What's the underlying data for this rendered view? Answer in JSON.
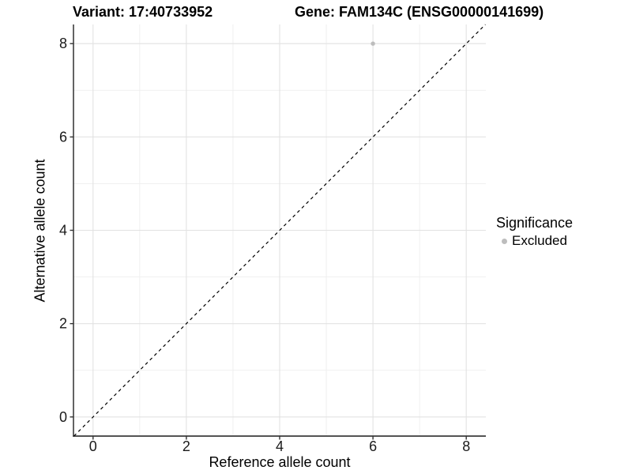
{
  "window": {
    "title_left": "Variant: 17:40733952",
    "title_right": "Gene: FAM134C (ENSG00000141699)"
  },
  "chart_data": {
    "type": "scatter",
    "title_left": "Variant: 17:40733952",
    "title_right": "Gene: FAM134C (ENSG00000141699)",
    "xlabel": "Reference allele count",
    "ylabel": "Alternative allele count",
    "xlim": [
      -0.42,
      8.42
    ],
    "ylim": [
      -0.41,
      8.41
    ],
    "x_ticks": [
      0,
      2,
      4,
      6,
      8
    ],
    "y_ticks": [
      0,
      2,
      4,
      6,
      8
    ],
    "x_minor_ticks": [
      1,
      3,
      5,
      7
    ],
    "y_minor_ticks": [
      1,
      3,
      5,
      7
    ],
    "grid": "on",
    "identity_line": {
      "equation": "y = x",
      "style": "dashed",
      "color": "#000000"
    },
    "series": [
      {
        "name": "Excluded",
        "color": "#bdbdbd",
        "points": [
          {
            "x": 6,
            "y": 8
          }
        ]
      }
    ],
    "legend": {
      "title": "Significance",
      "position": "right",
      "entries": [
        {
          "label": "Excluded",
          "color": "#bdbdbd"
        }
      ]
    },
    "colors": {
      "background": "#ffffff",
      "grid_major": "#e2e2e2",
      "grid_minor": "#eeeeee",
      "axis_line": "#3c3c3c",
      "tick_mark": "#333333",
      "tick_label": "#1a1a1a",
      "text": "#000000"
    }
  }
}
